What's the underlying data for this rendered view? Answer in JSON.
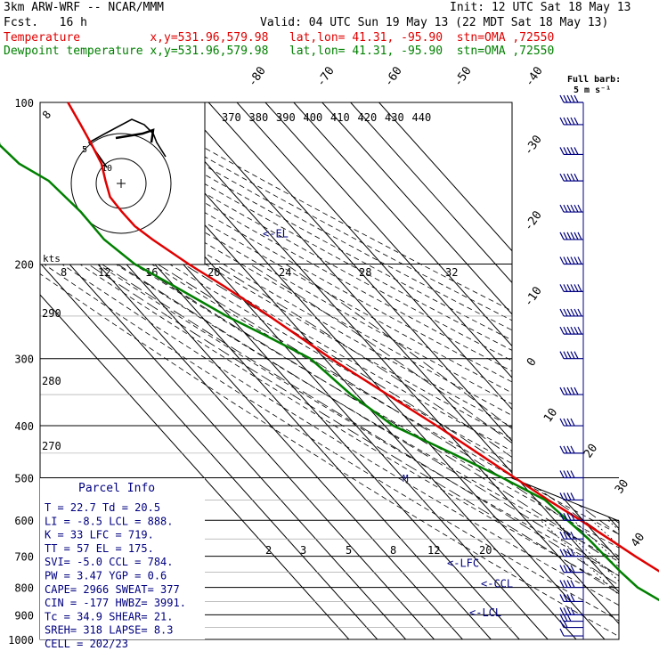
{
  "header": {
    "model": "3km ARW-WRF -- NCAR/MMM",
    "init": "Init: 12 UTC Sat 18 May 13",
    "fcst": "Fcst.   16 h",
    "valid": "Valid: 04 UTC Sun 19 May 13 (22 MDT Sat 18 May 13)",
    "temp_line": "Temperature          x,y=531.96,579.98   lat,lon= 41.31, -95.90  stn=OMA ,72550",
    "dew_line": "Dewpoint temperature x,y=531.96,579.98   lat,lon= 41.31, -95.90  stn=OMA ,72550"
  },
  "colors": {
    "temperature": "#e00000",
    "dewpoint": "#008000",
    "wind": "#000080",
    "text": "#000000"
  },
  "barb_legend": {
    "title": "Full barb:",
    "value": "5 m s⁻¹"
  },
  "hodograph": {
    "units": "kts",
    "ring_labels": [
      "5",
      "10"
    ]
  },
  "parcel_info": {
    "title": "Parcel Info",
    "rows": [
      "T  =   22.7  Td =  20.5",
      "LI =   -8.5  LCL =  888.",
      "K  =     33  LFC =  719.",
      "TT =     57  EL  =  175.",
      "SVI=   -5.0  CCL =  784.",
      "PW =   3.47  YGP =   0.6",
      "CAPE=  2966  SWEAT=  377",
      "CIN =  -177  HWBZ= 3991.",
      "Tc =   34.9  SHEAR=  21.",
      "SREH=   318  LAPSE=  8.3",
      "CELL = 202/23"
    ]
  },
  "chart_data": {
    "type": "line",
    "title": "Skew-T log-P sounding",
    "pressure_ticks": [
      "100",
      "200",
      "300",
      "400",
      "500",
      "600",
      "700",
      "800",
      "900",
      "1000"
    ],
    "temperature_labels": [
      "-80",
      "-70",
      "-60",
      "-50",
      "-40",
      "-30",
      "-20",
      "-10",
      "0",
      "10",
      "20",
      "30",
      "40"
    ],
    "theta_e_labels": [
      "370",
      "380",
      "390",
      "400",
      "410",
      "420",
      "430",
      "440"
    ],
    "theta_labels": [
      "290",
      "280",
      "270"
    ],
    "mixing_ratio_labels_upper": [
      "8",
      "12",
      "16",
      "20",
      "24",
      "28",
      "32"
    ],
    "mixing_ratio_labels_lower": [
      "2",
      "3",
      "5",
      "8",
      "12",
      "20"
    ],
    "levels": [
      {
        "label": "<-EL",
        "p": 175
      },
      {
        "label": "<-LFC",
        "p": 719
      },
      {
        "label": "<-CCL",
        "p": 784
      },
      {
        "label": "<-LCL",
        "p": 888
      }
    ],
    "series": [
      {
        "name": "Temperature",
        "p": [
          985,
          950,
          920,
          900,
          880,
          850,
          800,
          750,
          700,
          650,
          600,
          550,
          500,
          450,
          400,
          350,
          300,
          250,
          220,
          200,
          180,
          170,
          160,
          150,
          140,
          130,
          120,
          110,
          100
        ],
        "t": [
          22.7,
          23.0,
          22.5,
          21.4,
          19.9,
          18.2,
          14.7,
          11.0,
          7.0,
          3.3,
          -0.9,
          -5.9,
          -10.6,
          -15.8,
          -21.7,
          -29.2,
          -37.7,
          -46.0,
          -52.5,
          -58.0,
          -63.0,
          -65.0,
          -65.0,
          -64.5,
          -61.0,
          -57.0,
          -54.5,
          -52.0,
          -49.5
        ]
      },
      {
        "name": "Dewpoint temperature",
        "p": [
          985,
          950,
          920,
          900,
          880,
          850,
          800,
          750,
          700,
          650,
          600,
          550,
          500,
          450,
          400,
          350,
          300,
          270,
          250,
          220,
          200,
          180,
          160,
          140,
          130,
          120,
          110,
          100
        ],
        "t": [
          20.5,
          19.5,
          19.0,
          14.0,
          7.0,
          2.0,
          -2.0,
          -3.0,
          -3.5,
          -4.0,
          -5.5,
          -7.0,
          -15.0,
          -25.0,
          -37.0,
          -42.0,
          -45.0,
          -54.0,
          -61.0,
          -70.0,
          -77.0,
          -80.0,
          -79.5,
          -81.0,
          -86.0,
          -87.0,
          -82.0,
          -80.0
        ]
      }
    ],
    "wind_barbs": [
      {
        "p": 985,
        "spd": 5,
        "dir": 160
      },
      {
        "p": 950,
        "spd": 10,
        "dir": 175
      },
      {
        "p": 925,
        "spd": 15,
        "dir": 185
      },
      {
        "p": 900,
        "spd": 20,
        "dir": 195
      },
      {
        "p": 850,
        "spd": 20,
        "dir": 205
      },
      {
        "p": 800,
        "spd": 20,
        "dir": 215
      },
      {
        "p": 750,
        "spd": 20,
        "dir": 220
      },
      {
        "p": 700,
        "spd": 20,
        "dir": 225
      },
      {
        "p": 650,
        "spd": 20,
        "dir": 230
      },
      {
        "p": 600,
        "spd": 20,
        "dir": 230
      },
      {
        "p": 550,
        "spd": 20,
        "dir": 235
      },
      {
        "p": 500,
        "spd": 20,
        "dir": 235
      },
      {
        "p": 450,
        "spd": 20,
        "dir": 240
      },
      {
        "p": 400,
        "spd": 20,
        "dir": 240
      },
      {
        "p": 350,
        "spd": 25,
        "dir": 245
      },
      {
        "p": 300,
        "spd": 25,
        "dir": 245
      },
      {
        "p": 270,
        "spd": 30,
        "dir": 250
      },
      {
        "p": 250,
        "spd": 30,
        "dir": 250
      },
      {
        "p": 225,
        "spd": 30,
        "dir": 250
      },
      {
        "p": 200,
        "spd": 30,
        "dir": 250
      },
      {
        "p": 180,
        "spd": 30,
        "dir": 250
      },
      {
        "p": 160,
        "spd": 30,
        "dir": 250
      },
      {
        "p": 140,
        "spd": 25,
        "dir": 250
      },
      {
        "p": 125,
        "spd": 25,
        "dir": 250
      },
      {
        "p": 110,
        "spd": 25,
        "dir": 250
      },
      {
        "p": 100,
        "spd": 25,
        "dir": 250
      }
    ]
  }
}
